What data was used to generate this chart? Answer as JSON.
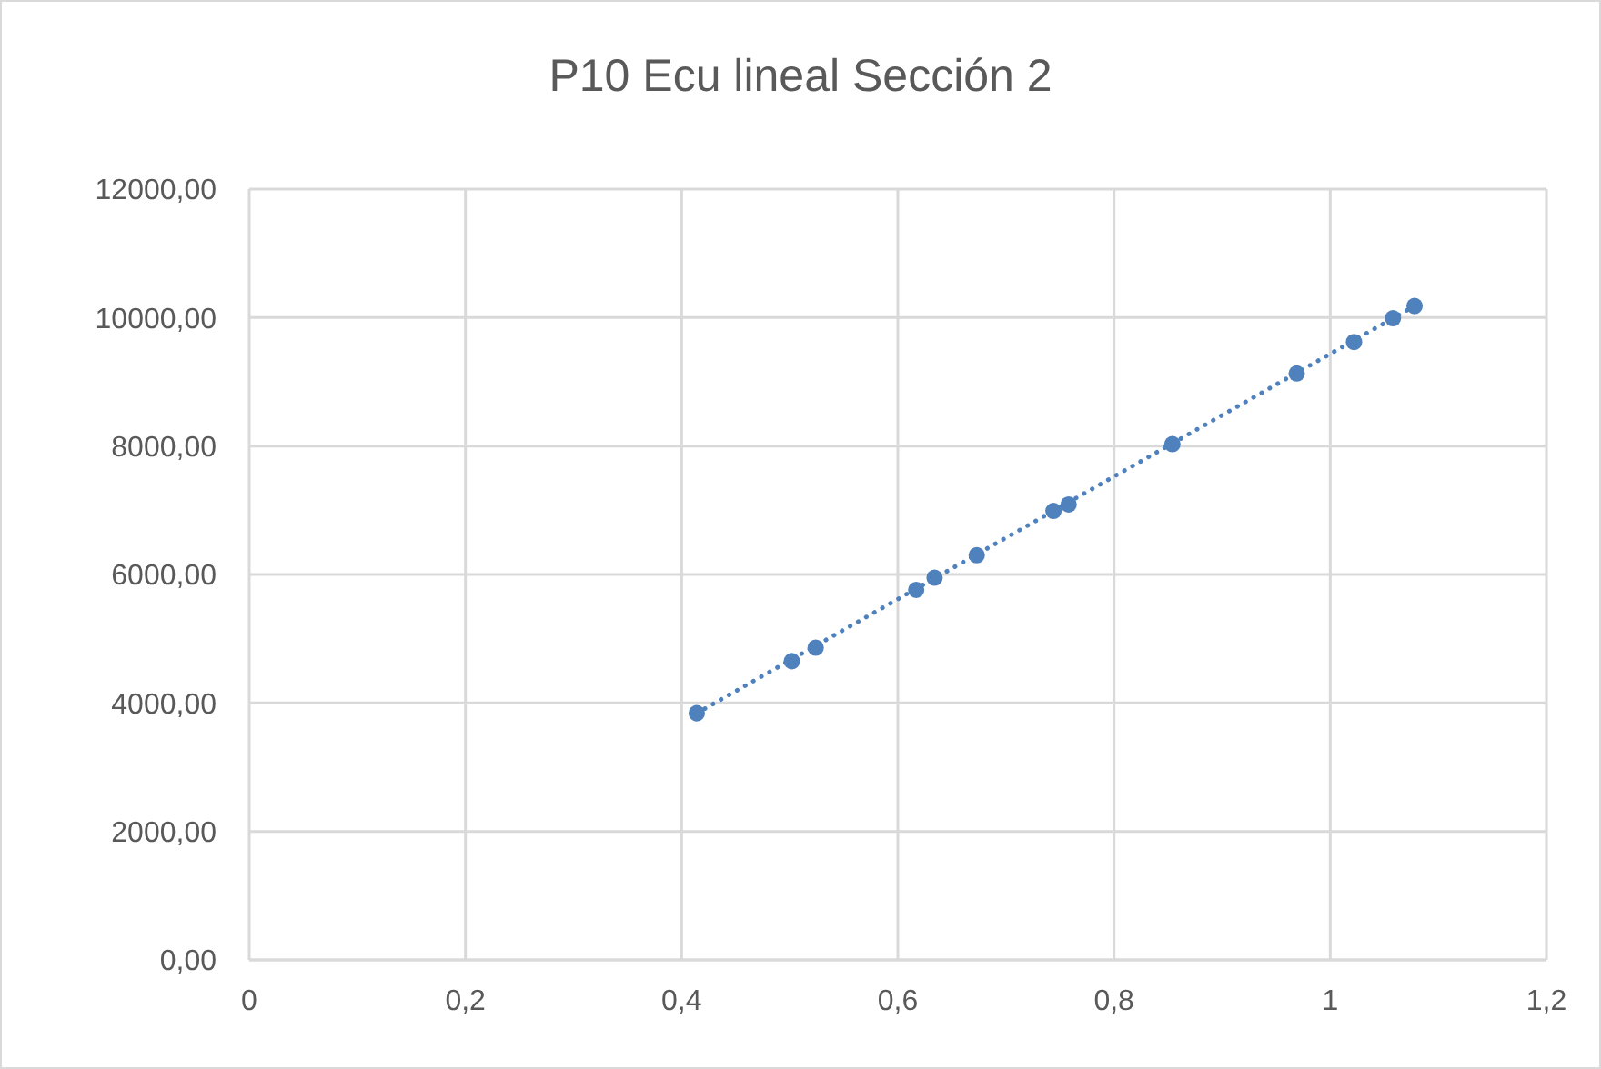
{
  "chart_data": {
    "type": "scatter",
    "title": "P10 Ecu lineal Sección 2",
    "series": [
      {
        "color": "#4f81bd",
        "marker": "circle",
        "x": [
          0.414,
          0.502,
          0.524,
          0.617,
          0.634,
          0.673,
          0.744,
          0.758,
          0.854,
          0.969,
          1.022,
          1.058,
          1.078
        ],
        "values": [
          3840,
          4650,
          4860,
          5760,
          5950,
          6300,
          6990,
          7090,
          8030,
          9130,
          9620,
          9990,
          10180
        ]
      },
      {
        "type": "line",
        "color": "#4f81bd",
        "marker": "none",
        "line_style": "dotted",
        "x": [
          0.414,
          1.078
        ],
        "values": [
          3840,
          10180
        ]
      }
    ],
    "xlim": [
      0,
      1.2
    ],
    "xticks": [
      {
        "value": 0,
        "label": "0"
      },
      {
        "value": 0.2,
        "label": "0,2"
      },
      {
        "value": 0.4,
        "label": "0,4"
      },
      {
        "value": 0.6,
        "label": "0,6"
      },
      {
        "value": 0.8,
        "label": "0,8"
      },
      {
        "value": 1,
        "label": "1"
      },
      {
        "value": 1.2,
        "label": "1,2"
      }
    ],
    "ylim": [
      0,
      12000
    ],
    "yticks": [
      {
        "value": 0,
        "label": "0,00"
      },
      {
        "value": 2000,
        "label": "2000,00"
      },
      {
        "value": 4000,
        "label": "4000,00"
      },
      {
        "value": 6000,
        "label": "6000,00"
      },
      {
        "value": 8000,
        "label": "8000,00"
      },
      {
        "value": 10000,
        "label": "10000,00"
      },
      {
        "value": 12000,
        "label": "12000,00"
      }
    ],
    "grid": true
  }
}
